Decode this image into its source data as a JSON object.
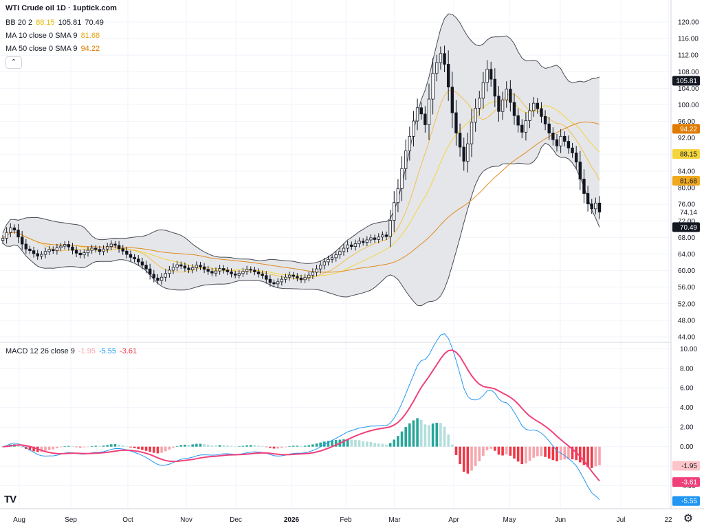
{
  "header": {
    "title": "WTI Crude oil  1D · 1uptick.com"
  },
  "legend": {
    "bb": {
      "label": "BB 20 2",
      "values": [
        "88.15",
        "105.81",
        "70.49"
      ],
      "colors": [
        "#e8b900",
        "#131722",
        "#131722"
      ]
    },
    "ma10": {
      "label": "MA 10 close 0 SMA 9",
      "value": "81.68",
      "color": "#e8a317"
    },
    "ma50": {
      "label": "MA 50 close 0 SMA 9",
      "value": "94.22",
      "color": "#e07b00"
    },
    "macd": {
      "label": "MACD 12 26 close 9",
      "values": [
        "-1.95",
        "-5.55",
        "-3.61"
      ],
      "colors": [
        "#f7a5ac",
        "#2196f3",
        "#f23645"
      ]
    }
  },
  "colors": {
    "bb_fill": "#e1e2e5",
    "bb_line": "#474a52",
    "ma10": "#f0c04a",
    "ma50": "#e08a1e",
    "macd": "#2196f3",
    "signal": "#f0407a",
    "hist_up": "#26a69a",
    "hist_up_light": "#b2dfdb",
    "hist_down": "#f23645",
    "hist_down_light": "#f7a5ac"
  },
  "icons": {
    "collapse": "chevron-up-icon",
    "logo": "tradingview-logo",
    "settings": "gear-icon"
  },
  "ui": {
    "collapse_glyph": "⌃",
    "logo_text": "TV",
    "settings_glyph": "⚙"
  },
  "chart_data": [
    {
      "type": "candlestick",
      "title": "WTI Crude oil 1D",
      "xlabel": "",
      "ylabel": "",
      "x_ticks": [
        "Aug",
        "Sep",
        "Oct",
        "Nov",
        "Dec",
        "2026",
        "Feb",
        "Mar",
        "Apr",
        "May",
        "Jun",
        "Jul",
        "22"
      ],
      "y_ticks": [
        "44.00",
        "48.00",
        "52.00",
        "56.00",
        "60.00",
        "64.00",
        "68.00",
        "72.00",
        "76.00",
        "80.00",
        "84.00",
        "88.00",
        "92.00",
        "96.00",
        "100.00",
        "104.00",
        "108.00",
        "112.00",
        "116.00",
        "120.00"
      ],
      "ylim": [
        43.0,
        121.0
      ],
      "price_labels": [
        {
          "value": "105.81",
          "bg": "#131722",
          "fg": "#ffffff"
        },
        {
          "value": "94.22",
          "bg": "#e07b00",
          "fg": "#ffffff"
        },
        {
          "value": "88.15",
          "bg": "#f5d53d",
          "fg": "#131722"
        },
        {
          "value": "81.68",
          "bg": "#f0a81e",
          "fg": "#131722"
        },
        {
          "value": "74.14",
          "bg": "#ffffff",
          "fg": "#131722"
        },
        {
          "value": "70.49",
          "bg": "#131722",
          "fg": "#ffffff"
        }
      ],
      "close": [
        67.8,
        69.2,
        70.3,
        69.8,
        68.1,
        66.4,
        65.2,
        64.8,
        64.1,
        63.5,
        63.9,
        64.6,
        65.1,
        64.8,
        65.5,
        65.9,
        66.3,
        65.7,
        64.9,
        64.2,
        63.8,
        64.3,
        64.9,
        65.4,
        65.1,
        64.6,
        65.2,
        65.8,
        66.4,
        66.1,
        65.3,
        64.7,
        63.9,
        63.2,
        62.8,
        62.1,
        61.3,
        60.4,
        59.1,
        58.2,
        57.6,
        58.4,
        59.3,
        60.1,
        60.8,
        61.4,
        61.1,
        60.6,
        60.2,
        60.7,
        61.3,
        60.9,
        60.3,
        59.8,
        59.4,
        59.9,
        60.5,
        60.1,
        59.7,
        59.2,
        58.9,
        59.3,
        59.8,
        60.3,
        60.1,
        59.7,
        59.2,
        58.8,
        57.9,
        57.1,
        56.8,
        57.3,
        57.9,
        58.4,
        58.9,
        58.6,
        58.2,
        57.8,
        58.3,
        58.9,
        59.6,
        60.4,
        61.3,
        62.1,
        62.7,
        63.1,
        63.8,
        64.6,
        65.4,
        66.2,
        65.8,
        66.5,
        67.1,
        66.8,
        67.4,
        67.9,
        67.5,
        68.1,
        68.6,
        68.2,
        72.1,
        76.4,
        79.8,
        84.6,
        88.9,
        92.4,
        96.1,
        99.3,
        97.8,
        95.2,
        101.4,
        107.6,
        110.2,
        112.4,
        109.8,
        104.3,
        98.1,
        93.2,
        89.8,
        86.4,
        90.6,
        95.8,
        99.2,
        101.6,
        105.4,
        108.6,
        106.2,
        102.1,
        98.4,
        101.2,
        103.8,
        100.6,
        97.4,
        95.1,
        93.4,
        96.2,
        98.6,
        100.4,
        99.1,
        97.2,
        95.4,
        93.2,
        91.6,
        90.1,
        92.4,
        91.2,
        89.6,
        88.4,
        86.2,
        82.1,
        78.6,
        76.1,
        74.9,
        76.3,
        74.14
      ],
      "bb": {
        "upper_last": 105.81,
        "mid_last": 88.15,
        "lower_last": 70.49
      },
      "ma10_last": 81.68,
      "ma50_last": 94.22
    },
    {
      "type": "bar",
      "title": "MACD 12 26 close 9",
      "y_ticks": [
        "-4.00",
        "-2.00",
        "0.00",
        "2.00",
        "4.00",
        "6.00",
        "8.00",
        "10.00"
      ],
      "ylim": [
        -6.2,
        10.3
      ],
      "price_labels": [
        {
          "value": "-1.95",
          "bg": "#fcc5c9",
          "fg": "#131722"
        },
        {
          "value": "-3.61",
          "bg": "#f0407a",
          "fg": "#ffffff"
        },
        {
          "value": "-5.55",
          "bg": "#2196f3",
          "fg": "#ffffff"
        }
      ],
      "histogram_last": -1.95,
      "macd_last": -5.55,
      "signal_last": -3.61
    }
  ]
}
